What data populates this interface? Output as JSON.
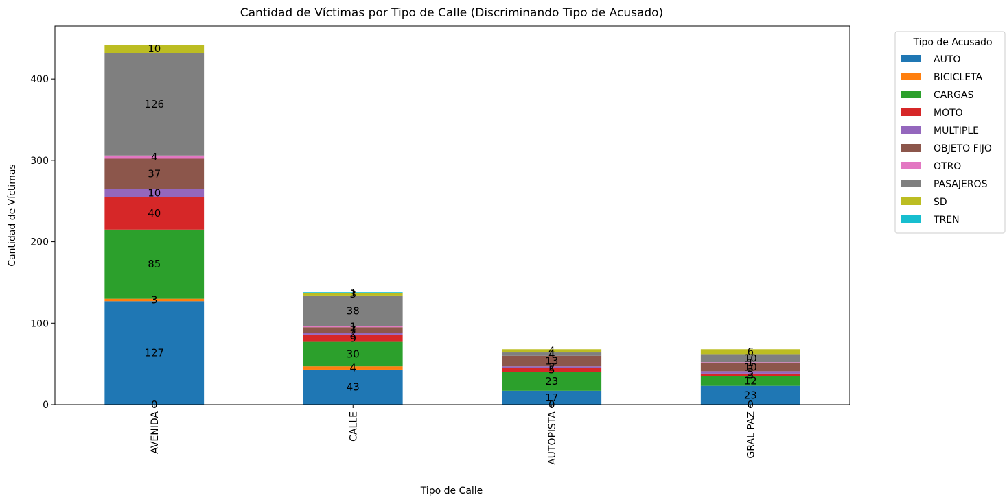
{
  "chart_data": {
    "type": "bar",
    "stacked": true,
    "title": "Cantidad de Víctimas por Tipo de Calle (Discriminando Tipo de Acusado)",
    "xlabel": "Tipo de Calle",
    "ylabel": "Cantidad de Víctimas",
    "ylim": [
      0,
      465
    ],
    "yticks": [
      0,
      100,
      200,
      300,
      400
    ],
    "grid": false,
    "legend_title": "Tipo de Acusado",
    "legend_position": "outside-top-right",
    "categories": [
      "AVENIDA",
      "CALLE",
      "AUTOPISTA",
      "GRAL PAZ"
    ],
    "series": [
      {
        "name": "AUTO",
        "color": "#1f77b4",
        "values": [
          127,
          43,
          17,
          23
        ]
      },
      {
        "name": "BICICLETA",
        "color": "#ff7f0e",
        "values": [
          3,
          4,
          0,
          0
        ]
      },
      {
        "name": "CARGAS",
        "color": "#2ca02c",
        "values": [
          85,
          30,
          23,
          12
        ]
      },
      {
        "name": "MOTO",
        "color": "#d62728",
        "values": [
          40,
          9,
          5,
          3
        ]
      },
      {
        "name": "MULTIPLE",
        "color": "#9467bd",
        "values": [
          10,
          2,
          2,
          3
        ]
      },
      {
        "name": "OBJETO FIJO",
        "color": "#8c564b",
        "values": [
          37,
          7,
          13,
          10
        ]
      },
      {
        "name": "OTRO",
        "color": "#e377c2",
        "values": [
          4,
          1,
          0,
          1
        ]
      },
      {
        "name": "PASAJEROS",
        "color": "#7f7f7f",
        "values": [
          126,
          38,
          4,
          10
        ]
      },
      {
        "name": "SD",
        "color": "#bcbd22",
        "values": [
          10,
          3,
          4,
          6
        ]
      },
      {
        "name": "TREN",
        "color": "#17becf",
        "values": [
          0,
          1,
          0,
          0
        ]
      }
    ],
    "segment_labels": [
      [
        "0",
        "3",
        "85",
        "40",
        "10",
        "37",
        "4",
        "126",
        "10",
        "127"
      ],
      [
        "43",
        "4",
        "30",
        "9",
        "2",
        "7",
        "1",
        "38",
        "3",
        "1"
      ],
      [
        "0",
        "17",
        "23",
        "5",
        "2",
        "13",
        "4",
        "4"
      ],
      [
        "0",
        "23",
        "12",
        "3",
        "3",
        "10",
        "1",
        "10",
        "6"
      ]
    ]
  }
}
